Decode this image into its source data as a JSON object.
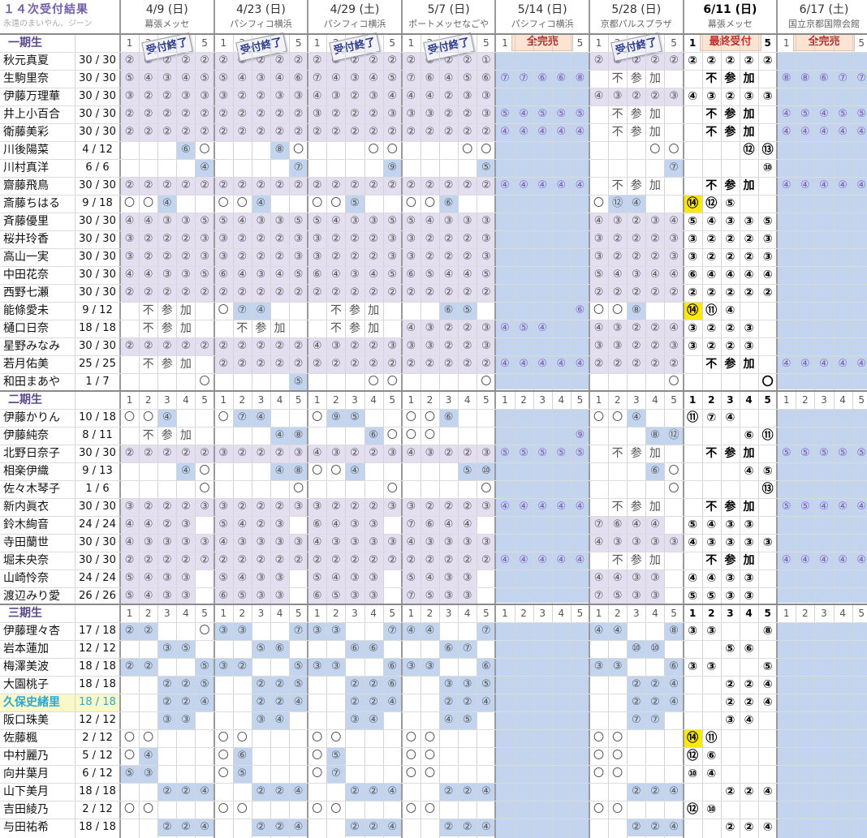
{
  "title": "１４次受付結果",
  "subtitle": "永遠のまいやん、ジーン",
  "generation_labels": [
    "一期生",
    "二期生",
    "三期生"
  ],
  "events": [
    {
      "date": "4/9 (日)",
      "venue": "幕張メッセ",
      "status": "受付終了",
      "status_type": "stamp"
    },
    {
      "date": "4/23 (日)",
      "venue": "パシフィコ横浜",
      "status": "受付終了",
      "status_type": "stamp"
    },
    {
      "date": "4/29 (土)",
      "venue": "パシフィコ横浜",
      "status": "受付終了",
      "status_type": "stamp"
    },
    {
      "date": "5/7 (日)",
      "venue": "ポートメッセなごや",
      "status": "受付終了",
      "status_type": "stamp"
    },
    {
      "date": "5/14 (日)",
      "venue": "パシフィコ横浜",
      "status": "全完売",
      "status_type": "soldout"
    },
    {
      "date": "5/28 (日)",
      "venue": "京都パルスプラザ",
      "status": "受付終了",
      "status_type": "stamp"
    },
    {
      "date": "6/11 (日)",
      "venue": "幕張メッセ",
      "status": "最終受付",
      "status_type": "final"
    },
    {
      "date": "6/17 (土)",
      "venue": "国立京都国際会館",
      "status": "全完売",
      "status_type": "soldout"
    }
  ],
  "slot_numbers": [
    "1",
    "2",
    "3",
    "4",
    "5"
  ],
  "not_participating": [
    "不",
    "参",
    "加"
  ],
  "members": [
    {
      "gen": 0,
      "name": "秋元真夏",
      "count": "30 / 30",
      "cells": [
        "②②②②②",
        "②②②②②",
        "②②②②②",
        "②②②②①",
        "",
        "②②②②②",
        "②②②②②",
        ""
      ]
    },
    {
      "gen": 0,
      "name": "生駒里奈",
      "count": "30 / 30",
      "cells": [
        "⑤④③④⑤",
        "⑤④③④⑥",
        "⑦④③④⑤",
        "⑦⑥④⑤⑥",
        "⑦⑦⑥⑥⑧",
        "X",
        "X",
        "⑧⑧⑥⑦⑦"
      ]
    },
    {
      "gen": 0,
      "name": "伊藤万理華",
      "count": "30 / 30",
      "cells": [
        "③②②③③",
        "③②②③③",
        "④③②③④",
        "④④②③③",
        "",
        "④③②②③",
        "④③②③③",
        ""
      ]
    },
    {
      "gen": 0,
      "name": "井上小百合",
      "count": "30 / 30",
      "cells": [
        "②②②②②",
        "②②②②②",
        "③②②②③",
        "③③②②③",
        "⑤④⑤⑤⑤",
        "X",
        "X",
        "④⑤④⑤⑤"
      ]
    },
    {
      "gen": 0,
      "name": "衛藤美彩",
      "count": "30 / 30",
      "cells": [
        "②②②②②",
        "②②②②②",
        "②②②②②",
        "②②②②②",
        "④④④④④",
        "X",
        "X",
        "④④④④④"
      ]
    },
    {
      "gen": 0,
      "name": "川後陽菜",
      "count": "4 / 12",
      "cells": [
        "   ⑥〇",
        "   ⑧〇",
        "   〇〇",
        "   〇〇",
        "",
        "   〇〇",
        "   ⑫⑬",
        ""
      ]
    },
    {
      "gen": 0,
      "name": "川村真洋",
      "count": "6 / 6",
      "cells": [
        "    ④",
        "    ⑦",
        "    ⑨",
        "    ⑤",
        "",
        "    ⑦",
        "    ⑩",
        ""
      ]
    },
    {
      "gen": 0,
      "name": "齋藤飛鳥",
      "count": "30 / 30",
      "cells": [
        "②②②②②",
        "②②②②②",
        "②②②②②",
        "②②②②②",
        "④④④④④",
        "X",
        "X",
        "④④④④④"
      ]
    },
    {
      "gen": 0,
      "name": "斎藤ちはる",
      "count": "9 / 18",
      "cells": [
        "〇〇④",
        "〇〇④",
        "〇〇⑤",
        "〇〇⑥",
        "",
        "〇⑫④",
        "⑭⑫⑤",
        ""
      ]
    },
    {
      "gen": 0,
      "name": "斉藤優里",
      "count": "30 / 30",
      "cells": [
        "④④③③⑤",
        "⑤④③③⑤",
        "⑤④③③⑤",
        "⑤④③③③",
        "",
        "④③②③④",
        "⑤④③③⑤",
        ""
      ]
    },
    {
      "gen": 0,
      "name": "桜井玲香",
      "count": "30 / 30",
      "cells": [
        "③②②②③",
        "③②②②③",
        "③②②②③",
        "③②②②③",
        "",
        "③②②②③",
        "③②②②③",
        ""
      ]
    },
    {
      "gen": 0,
      "name": "高山一実",
      "count": "30 / 30",
      "cells": [
        "③②②②③",
        "③②②②③",
        "③②②②③",
        "③②②②③",
        "",
        "③②②②③",
        "③②②②③",
        ""
      ]
    },
    {
      "gen": 0,
      "name": "中田花奈",
      "count": "30 / 30",
      "cells": [
        "④④③③⑤",
        "⑥④③④⑤",
        "⑥④③④⑤",
        "⑥⑤④④⑤",
        "",
        "⑤④③④④",
        "⑥④④④④",
        ""
      ]
    },
    {
      "gen": 0,
      "name": "西野七瀬",
      "count": "30 / 30",
      "cells": [
        "②②②②②",
        "②②②②②",
        "②②②②②",
        "②②②②②",
        "",
        "②②②②②",
        "②②②②②",
        ""
      ]
    },
    {
      "gen": 0,
      "name": "能條愛未",
      "count": "9 / 12",
      "cells": [
        "X",
        "〇⑦④",
        "X",
        "  ⑥⑤",
        "    ⑥",
        "〇〇⑧",
        "⑭⑪④",
        ""
      ]
    },
    {
      "gen": 0,
      "name": "樋口日奈",
      "count": "18 / 18",
      "cells": [
        "X",
        "X",
        "X",
        "④③②②③",
        "④⑤④",
        "④③②②④",
        "③②②③",
        ""
      ]
    },
    {
      "gen": 0,
      "name": "星野みなみ",
      "count": "30 / 30",
      "cells": [
        "②②②②②",
        "②②②②②",
        "④③②②③",
        "③③②②③",
        "",
        "③③②②③",
        "③②②③",
        ""
      ]
    },
    {
      "gen": 0,
      "name": "若月佑美",
      "count": "25 / 25",
      "cells": [
        "X",
        "②②②②②",
        "②②②②②",
        "②②②②②",
        "④④④④④",
        "②②②②②",
        "X",
        "④④④④④"
      ]
    },
    {
      "gen": 0,
      "name": "和田まあや",
      "count": "1 / 7",
      "cells": [
        "    〇",
        "    ⑤",
        "   〇〇",
        "    〇",
        "",
        "    〇",
        "    〇",
        ""
      ]
    },
    {
      "gen": 1,
      "name": "伊藤かりん",
      "count": "10 / 18",
      "cells": [
        "〇〇④",
        "〇⑦④",
        "〇⑨⑤",
        "〇〇⑥",
        "",
        "〇〇④",
        "⑪⑦④",
        ""
      ]
    },
    {
      "gen": 1,
      "name": "伊藤純奈",
      "count": "8 / 11",
      "cells": [
        "X",
        "   ④⑧",
        "   ⑥〇",
        "〇〇",
        "    ⑨",
        "   ⑧⑫",
        "   ⑥⑪",
        ""
      ]
    },
    {
      "gen": 1,
      "name": "北野日奈子",
      "count": "30 / 30",
      "cells": [
        "②②②②②",
        "③②②②③",
        "④③②②③",
        "④③②②③",
        "⑤⑤⑤⑤⑤",
        "X",
        "X",
        "⑤⑤⑤⑤⑤"
      ]
    },
    {
      "gen": 1,
      "name": "相楽伊織",
      "count": "9 / 13",
      "cells": [
        "   ④〇",
        "   ④⑧",
        "〇〇④",
        "   ⑤⑩",
        "",
        "   ⑥〇",
        "   ④⑤",
        ""
      ]
    },
    {
      "gen": 1,
      "name": "佐々木琴子",
      "count": "1 / 6",
      "cells": [
        "    〇",
        "    〇",
        "    〇",
        "    〇",
        "",
        "    〇",
        "    ⑬",
        ""
      ]
    },
    {
      "gen": 1,
      "name": "新内眞衣",
      "count": "30 / 30",
      "cells": [
        "③②②②③",
        "③②②②③",
        "③②②②③",
        "③②②②③",
        "④④④④④",
        "X",
        "X",
        "⑤⑤④④④"
      ]
    },
    {
      "gen": 1,
      "name": "鈴木絢音",
      "count": "24 / 24",
      "cells": [
        "④④②③",
        "⑤④②③",
        "⑥④③③",
        "⑦⑥④④",
        "",
        "⑦⑥④④",
        "⑤④③③",
        ""
      ]
    },
    {
      "gen": 1,
      "name": "寺田蘭世",
      "count": "30 / 30",
      "cells": [
        "④③③③③",
        "④③③③③",
        "④③③③③",
        "④③③③③",
        "",
        "④③③③③",
        "④③③③③",
        ""
      ]
    },
    {
      "gen": 1,
      "name": "堀未央奈",
      "count": "30 / 30",
      "cells": [
        "②②②②②",
        "②②②②②",
        "②②②②②",
        "②②②②②",
        "④④④④④",
        "X",
        "X",
        "④④④④④"
      ]
    },
    {
      "gen": 1,
      "name": "山崎怜奈",
      "count": "24 / 24",
      "cells": [
        "⑤④③③",
        "⑤④③③",
        "⑤④③③",
        "⑤④③③",
        "",
        "④④③③",
        "④④③③",
        ""
      ]
    },
    {
      "gen": 1,
      "name": "渡辺みり愛",
      "count": "26 / 26",
      "cells": [
        "⑤④③③",
        "⑥⑤③③",
        "⑥⑤③③",
        "⑦⑤③③",
        "",
        "⑦⑤③③",
        "⑤⑤③③",
        ""
      ]
    },
    {
      "gen": 2,
      "name": "伊藤理々杏",
      "count": "17 / 18",
      "cells": [
        "②②  〇",
        "③③  ⑦",
        "③③  ⑦",
        "④④  ⑦",
        "",
        "④④  ⑧",
        "③③  ⑧",
        ""
      ]
    },
    {
      "gen": 2,
      "name": "岩本蓮加",
      "count": "12 / 12",
      "cells": [
        "  ③⑤",
        "  ⑤⑥",
        "  ⑥⑥",
        "  ⑥⑦",
        "",
        "  ⑩⑩",
        "  ⑤⑥",
        ""
      ]
    },
    {
      "gen": 2,
      "name": "梅澤美波",
      "count": "18 / 18",
      "cells": [
        "②②  ⑤",
        "③②  ⑤",
        "③③  ⑥",
        "③③  ⑥",
        "",
        "③③  ⑥",
        "③③  ⑤",
        ""
      ]
    },
    {
      "gen": 2,
      "name": "大園桃子",
      "count": "18 / 18",
      "cells": [
        "  ②②⑤",
        "  ②②⑤",
        "  ②②⑥",
        "  ③③⑤",
        "",
        "  ②②④",
        "  ②②④",
        ""
      ]
    },
    {
      "gen": 2,
      "name": "久保史緒里",
      "count": "18 / 18",
      "cells": [
        "  ②②④",
        "  ②②④",
        "  ②②④",
        "  ②②④",
        "",
        "  ②②④",
        "  ②②④",
        ""
      ],
      "highlight": true
    },
    {
      "gen": 2,
      "name": "阪口珠美",
      "count": "12 / 12",
      "cells": [
        "  ③③",
        "  ③④",
        "  ③④",
        "  ④⑤",
        "",
        "  ⑦⑦",
        "  ③④",
        ""
      ]
    },
    {
      "gen": 2,
      "name": "佐藤楓",
      "count": "2 / 12",
      "cells": [
        "〇〇",
        "〇〇",
        "〇〇",
        "〇〇",
        "",
        "〇〇",
        "⑭⑪",
        ""
      ]
    },
    {
      "gen": 2,
      "name": "中村麗乃",
      "count": "5 / 12",
      "cells": [
        "〇④",
        "〇⑥",
        "〇⑤",
        "〇〇",
        "",
        "〇〇",
        "⑫⑥",
        ""
      ]
    },
    {
      "gen": 2,
      "name": "向井葉月",
      "count": "6 / 12",
      "cells": [
        "⑤③",
        "〇⑤",
        "〇⑦",
        "〇〇",
        "",
        "〇〇",
        "⑩④",
        ""
      ]
    },
    {
      "gen": 2,
      "name": "山下美月",
      "count": "18 / 18",
      "cells": [
        "  ②②④",
        "  ②②④",
        "  ②②④",
        "  ②②④",
        "",
        "  ②②④",
        "  ②②④",
        ""
      ]
    },
    {
      "gen": 2,
      "name": "吉田綾乃",
      "count": "2 / 12",
      "cells": [
        "〇〇",
        "〇〇",
        "〇〇",
        "〇〇",
        "",
        "〇〇",
        "⑫⑩",
        ""
      ]
    },
    {
      "gen": 2,
      "name": "与田祐希",
      "count": "18 / 18",
      "cells": [
        "  ②②④",
        "  ②②④",
        "  ②②④",
        "  ②②④",
        "",
        "  ②②④",
        "  ②②④",
        ""
      ]
    }
  ],
  "colors": {
    "fill": "#e3def0",
    "blue": "#c3d5ee",
    "yellow": "#ffe80a",
    "banner": "#fde4d2",
    "accent": "#7060a8"
  }
}
